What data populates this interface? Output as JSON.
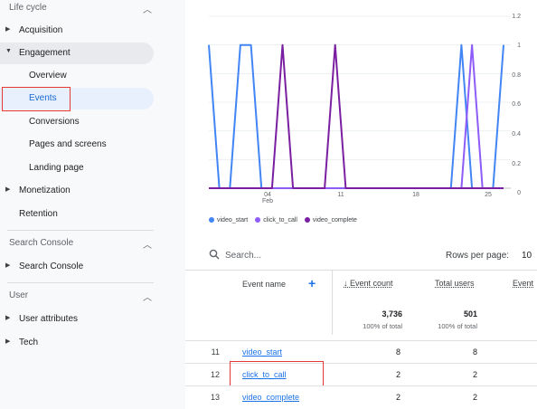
{
  "sidebar": {
    "lifecycle_header": "Life cycle",
    "lifecycle_items": [
      {
        "label": "Acquisition",
        "expandable": true
      },
      {
        "label": "Engagement",
        "expanded": true
      },
      {
        "label": "Overview"
      },
      {
        "label": "Events",
        "selected": true
      },
      {
        "label": "Conversions"
      },
      {
        "label": "Pages and screens"
      },
      {
        "label": "Landing page"
      },
      {
        "label": "Monetization",
        "expandable": true
      },
      {
        "label": "Retention"
      }
    ],
    "search_console_header": "Search Console",
    "search_console_item": "Search Console",
    "user_header": "User",
    "user_items": [
      "User attributes",
      "Tech"
    ]
  },
  "chart": {
    "y_ticks": [
      "1.2",
      "1",
      "0.8",
      "0.6",
      "0.4",
      "0.2",
      "0"
    ],
    "x_ticks": [
      {
        "label": "04",
        "sub": "Feb"
      },
      {
        "label": "11",
        "sub": ""
      },
      {
        "label": "18",
        "sub": ""
      },
      {
        "label": "25",
        "sub": ""
      }
    ]
  },
  "chart_data": {
    "type": "line",
    "x": [
      "Jan 31",
      "Feb 1",
      "Feb 2",
      "Feb 3",
      "Feb 4",
      "Feb 5",
      "Feb 6",
      "Feb 7",
      "Feb 8",
      "Feb 9",
      "Feb 10",
      "Feb 11",
      "Feb 12",
      "Feb 13",
      "Feb 14",
      "Feb 15",
      "Feb 16",
      "Feb 17",
      "Feb 18",
      "Feb 19",
      "Feb 20",
      "Feb 21",
      "Feb 22",
      "Feb 23",
      "Feb 24",
      "Feb 25",
      "Feb 26",
      "Feb 27",
      "Feb 28"
    ],
    "series": [
      {
        "name": "video_start",
        "color": "#4285f4",
        "values": [
          1,
          0,
          0,
          1,
          1,
          0,
          0,
          0,
          0,
          0,
          0,
          0,
          0,
          0,
          0,
          0,
          0,
          0,
          0,
          0,
          0,
          0,
          0,
          0,
          1,
          0,
          0,
          0,
          1
        ]
      },
      {
        "name": "click_to_call",
        "color": "#8e5cf7",
        "values": [
          0,
          0,
          0,
          0,
          0,
          0,
          0,
          0,
          0,
          0,
          0,
          0,
          0,
          0,
          0,
          0,
          0,
          0,
          0,
          0,
          0,
          0,
          0,
          0,
          0,
          1,
          0,
          0,
          0
        ]
      },
      {
        "name": "video_complete",
        "color": "#7b1fa2",
        "values": [
          0,
          0,
          0,
          0,
          0,
          0,
          0,
          1,
          0,
          0,
          0,
          0,
          1,
          0,
          0,
          0,
          0,
          0,
          0,
          0,
          0,
          0,
          0,
          0,
          0,
          0,
          0,
          0,
          0
        ]
      }
    ],
    "ylim": [
      0,
      1.2
    ],
    "grid": true,
    "legend": "bottom-left"
  },
  "table": {
    "search_placeholder": "Search...",
    "rows_per_page_label": "Rows per page:",
    "rows_per_page_value": "10",
    "col_event_name": "Event name",
    "add_symbol": "+",
    "col_event_count": "↓ Event count",
    "col_total_users": "Total users",
    "col_event_partial": "Event",
    "totals": {
      "event_count": "3,736",
      "event_count_sub": "100% of total",
      "total_users": "501",
      "total_users_sub": "100% of total"
    },
    "rows": [
      {
        "index": "11",
        "name": "video_start",
        "count": "8",
        "users": "8"
      },
      {
        "index": "12",
        "name": "click_to_call",
        "count": "2",
        "users": "2",
        "highlighted": true
      },
      {
        "index": "13",
        "name": "video_complete",
        "count": "2",
        "users": "2"
      }
    ]
  }
}
